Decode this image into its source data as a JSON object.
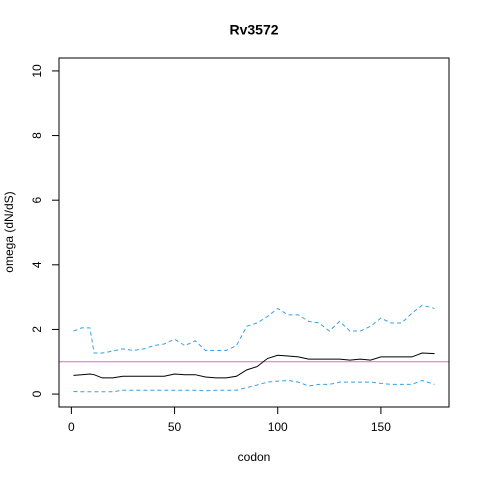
{
  "chart_data": {
    "type": "line",
    "title": "Rv3572",
    "xlabel": "codon",
    "ylabel": "omega (dN/dS)",
    "x": [
      1,
      5,
      9,
      11,
      15,
      20,
      25,
      30,
      35,
      40,
      45,
      50,
      55,
      60,
      65,
      70,
      75,
      80,
      85,
      90,
      95,
      100,
      105,
      110,
      115,
      120,
      125,
      130,
      135,
      140,
      145,
      150,
      155,
      160,
      165,
      170,
      176
    ],
    "series": [
      {
        "color": "#000000",
        "dashed": false,
        "values": [
          0.58,
          0.6,
          0.62,
          0.6,
          0.5,
          0.5,
          0.55,
          0.55,
          0.55,
          0.55,
          0.55,
          0.62,
          0.6,
          0.6,
          0.53,
          0.5,
          0.5,
          0.55,
          0.75,
          0.85,
          1.1,
          1.2,
          1.18,
          1.15,
          1.08,
          1.08,
          1.08,
          1.08,
          1.05,
          1.08,
          1.05,
          1.15,
          1.15,
          1.15,
          1.15,
          1.27,
          1.25
        ]
      },
      {
        "color": "#3aa0e0",
        "dashed": true,
        "values": [
          1.95,
          2.05,
          2.05,
          1.27,
          1.27,
          1.33,
          1.4,
          1.35,
          1.4,
          1.5,
          1.55,
          1.7,
          1.5,
          1.65,
          1.35,
          1.35,
          1.35,
          1.5,
          2.1,
          2.2,
          2.4,
          2.65,
          2.45,
          2.45,
          2.25,
          2.2,
          1.95,
          2.25,
          1.95,
          1.95,
          2.1,
          2.35,
          2.2,
          2.2,
          2.5,
          2.75,
          2.65
        ]
      },
      {
        "color": "#3aa0e0",
        "dashed": true,
        "values": [
          0.08,
          0.07,
          0.07,
          0.07,
          0.07,
          0.07,
          0.12,
          0.12,
          0.12,
          0.12,
          0.12,
          0.12,
          0.12,
          0.12,
          0.1,
          0.12,
          0.12,
          0.12,
          0.2,
          0.28,
          0.37,
          0.4,
          0.42,
          0.37,
          0.25,
          0.3,
          0.3,
          0.37,
          0.37,
          0.37,
          0.37,
          0.33,
          0.3,
          0.3,
          0.3,
          0.42,
          0.3
        ]
      }
    ],
    "hline": 1,
    "hline_color": "#d070d0",
    "xlim": [
      -6,
      183
    ],
    "xticks": [
      0,
      50,
      100,
      150
    ],
    "ylim": [
      -0.4,
      10.4
    ],
    "yticks": [
      0,
      2,
      4,
      6,
      8,
      10
    ]
  }
}
